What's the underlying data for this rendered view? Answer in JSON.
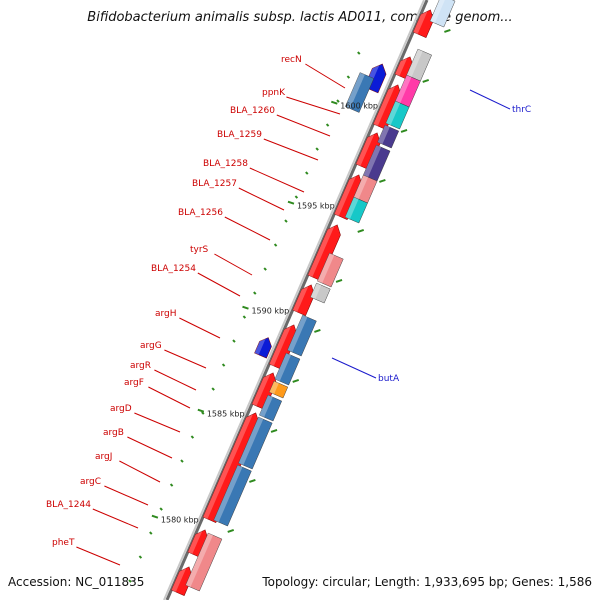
{
  "title": "Bifidobacterium animalis subsp. lactis AD011, complete genom...",
  "footer": {
    "accession": "Accession: NC_011835",
    "topology": "Topology: circular; Length: 1,933,695 bp; Genes: 1,586"
  },
  "colors": {
    "red": "#ff1a1a",
    "blue": "#3a78b4",
    "navy": "#0b1bd6",
    "magenta": "#ff3aa8",
    "cyan": "#17c8c8",
    "purple": "#4a3a8e",
    "pink": "#f0888a",
    "gray": "#c8c8c8",
    "orange": "#ff9a1a",
    "tick": "#2f8a1f",
    "label_left": "#cc0000",
    "label_right": "#1a1acc"
  },
  "ticks": [
    {
      "label": "1600 kbp"
    },
    {
      "label": "1595 kbp"
    },
    {
      "label": "1590 kbp"
    },
    {
      "label": "1585 kbp"
    },
    {
      "label": "1580 kbp"
    }
  ],
  "left_genes": [
    {
      "name": "recN"
    },
    {
      "name": "ppnK"
    },
    {
      "name": "BLA_1260"
    },
    {
      "name": "BLA_1259"
    },
    {
      "name": "BLA_1258"
    },
    {
      "name": "BLA_1257"
    },
    {
      "name": "BLA_1256"
    },
    {
      "name": "tyrS"
    },
    {
      "name": "BLA_1254"
    },
    {
      "name": "argH"
    },
    {
      "name": "argG"
    },
    {
      "name": "argR"
    },
    {
      "name": "argF"
    },
    {
      "name": "argD"
    },
    {
      "name": "argB"
    },
    {
      "name": "argJ"
    },
    {
      "name": "argC"
    },
    {
      "name": "BLA_1244"
    },
    {
      "name": "pheT"
    }
  ],
  "right_genes": [
    {
      "name": "thrC"
    },
    {
      "name": "butA"
    }
  ]
}
